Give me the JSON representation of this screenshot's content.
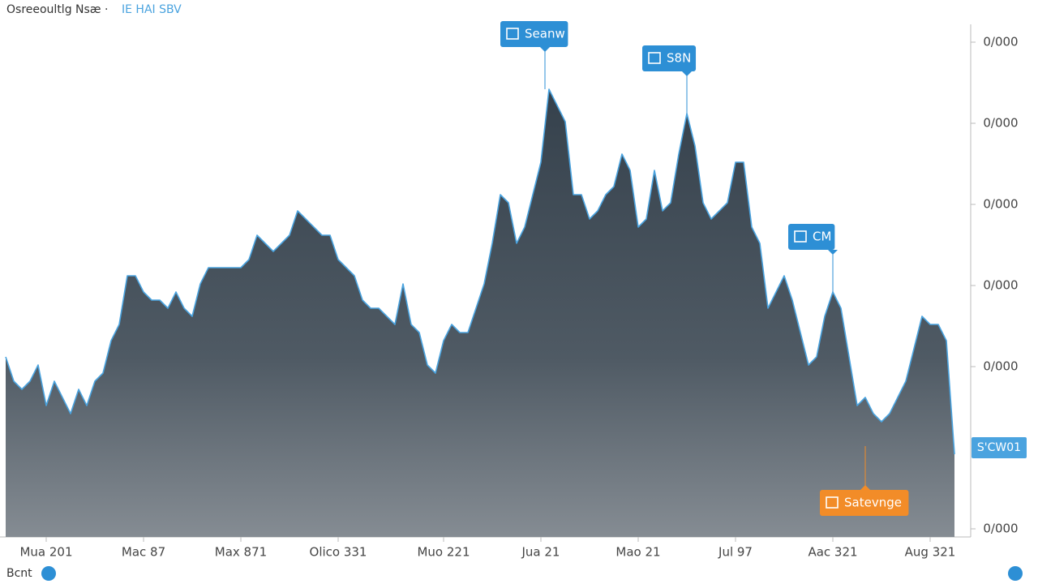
{
  "chart_data": {
    "type": "area",
    "title": "Osreeoultlg Nsæ ·",
    "subtitle": "IE HAI SBV",
    "footer": "Bcnt",
    "series": [
      {
        "color": "#4aa3df",
        "values": [
          2.12,
          1.82,
          1.72,
          1.82,
          2.02,
          1.52,
          1.82,
          1.62,
          1.42,
          1.72,
          1.52,
          1.82,
          1.92,
          2.32,
          2.52,
          3.12,
          3.12,
          2.92,
          2.82,
          2.82,
          2.72,
          2.92,
          2.72,
          2.62,
          3.02,
          3.22,
          3.22,
          3.22,
          3.22,
          3.22,
          3.32,
          3.62,
          3.52,
          3.42,
          3.52,
          3.62,
          3.92,
          3.82,
          3.72,
          3.62,
          3.62,
          3.32,
          3.22,
          3.12,
          2.82,
          2.72,
          2.72,
          2.62,
          2.52,
          3.02,
          2.52,
          2.42,
          2.02,
          1.92,
          2.32,
          2.52,
          2.42,
          2.42,
          2.72,
          3.02,
          3.52,
          4.12,
          4.02,
          3.52,
          3.72,
          4.12,
          4.52,
          5.42,
          5.22,
          5.02,
          4.12,
          4.12,
          3.82,
          3.92,
          4.12,
          4.22,
          4.62,
          4.42,
          3.72,
          3.82,
          4.42,
          3.92,
          4.02,
          4.62,
          5.12,
          4.72,
          4.02,
          3.82,
          3.92,
          4.02,
          4.52,
          4.52,
          3.72,
          3.52,
          2.72,
          2.92,
          3.12,
          2.82,
          2.42,
          2.02,
          2.12,
          2.62,
          2.92,
          2.72,
          2.12,
          1.52,
          1.62,
          1.42,
          1.32,
          1.42,
          1.62,
          1.82,
          2.22,
          2.62,
          2.52,
          2.52,
          2.32,
          0.92
        ]
      }
    ],
    "xlim": [
      0,
      117
    ],
    "xticks": [
      {
        "value": 5,
        "label": "Mua 201"
      },
      {
        "value": 17,
        "label": "Mac 87"
      },
      {
        "value": 29,
        "label": "Max 871"
      },
      {
        "value": 41,
        "label": "Olico 331"
      },
      {
        "value": 54,
        "label": "Muo 221"
      },
      {
        "value": 66,
        "label": "Jua 21"
      },
      {
        "value": 78,
        "label": "Mao 21"
      },
      {
        "value": 90,
        "label": "Jul 97"
      },
      {
        "value": 102,
        "label": "Aac 321"
      },
      {
        "value": 114,
        "label": "Aug 321"
      }
    ],
    "ylim": [
      -0.1,
      6.22
    ],
    "yticks": [
      {
        "value": 6,
        "label": "0/000"
      },
      {
        "value": 5,
        "label": "0/000"
      },
      {
        "value": 4,
        "label": "0/000"
      },
      {
        "value": 3,
        "label": "0/000"
      },
      {
        "value": 2,
        "label": "0/000"
      },
      {
        "value": 0,
        "label": "0/000"
      }
    ],
    "last_label": {
      "value": 1,
      "label": "S'CW01"
    },
    "annotations": [
      {
        "text": "Seanw",
        "x": 66.5,
        "color": "#2d8fd5",
        "placement": "above"
      },
      {
        "text": "S8N",
        "x": 84,
        "color": "#2d8fd5",
        "placement": "above"
      },
      {
        "text": "CM",
        "x": 102,
        "color": "#2d8fd5",
        "placement": "above"
      },
      {
        "text": "Satevnge",
        "x": 106,
        "color": "#f28c28",
        "placement": "below"
      }
    ]
  }
}
